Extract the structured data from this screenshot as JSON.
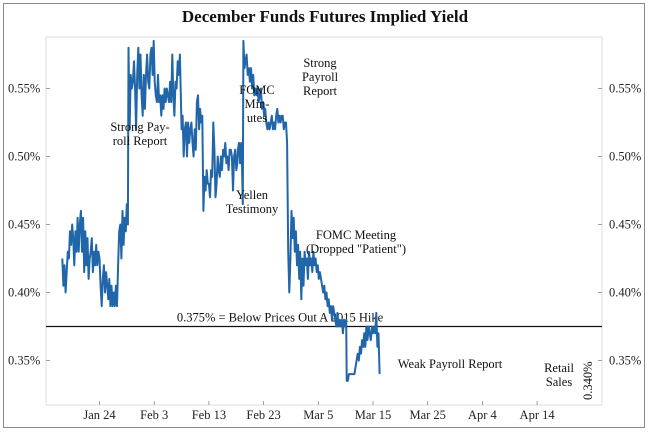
{
  "chart_data": {
    "type": "line",
    "title": "December Funds Futures Implied Yield",
    "xlabel": "",
    "ylabel": "",
    "ylim": [
      0.325,
      0.595
    ],
    "x_ticks": [
      "Jan 24",
      "Feb 3",
      "Feb 13",
      "Feb 23",
      "Mar 5",
      "Mar 15",
      "Mar 25",
      "Apr 4",
      "Apr 14"
    ],
    "y_ticks": [
      {
        "value": 0.35,
        "label": "0.35%"
      },
      {
        "value": 0.4,
        "label": "0.40%"
      },
      {
        "value": 0.45,
        "label": "0.45%"
      },
      {
        "value": 0.5,
        "label": "0.50%"
      },
      {
        "value": 0.55,
        "label": "0.55%"
      }
    ],
    "reference_line": {
      "value": 0.375,
      "label": "0.375% = Below Prices Out A 2015 Hike"
    },
    "end_label": "0.340%",
    "annotations": [
      {
        "id": "strong-payroll-1",
        "lines": [
          "Strong Pay-",
          "roll Report"
        ]
      },
      {
        "id": "fomc-minutes",
        "lines": [
          "FOMC",
          "Min-",
          "utes"
        ]
      },
      {
        "id": "strong-payroll-2",
        "lines": [
          "Strong",
          "Payroll",
          "Report"
        ]
      },
      {
        "id": "yellen",
        "lines": [
          "Yellen",
          "Testimony"
        ]
      },
      {
        "id": "fomc-meeting",
        "lines": [
          "FOMC Meeting",
          "(Dropped \"Patient\")"
        ]
      },
      {
        "id": "weak-payroll",
        "lines": [
          "Weak Payroll Report"
        ]
      },
      {
        "id": "retail-sales",
        "lines": [
          "Retail",
          "Sales"
        ]
      }
    ],
    "series": [
      {
        "name": "December Funds Futures Implied Yield",
        "color": "#2166a8",
        "points": [
          [
            -6.8,
            0.425
          ],
          [
            -6.6,
            0.405
          ],
          [
            -6.4,
            0.42
          ],
          [
            -6.2,
            0.4
          ],
          [
            -6.0,
            0.415
          ],
          [
            -5.8,
            0.43
          ],
          [
            -5.6,
            0.425
          ],
          [
            -5.4,
            0.445
          ],
          [
            -5.2,
            0.435
          ],
          [
            -5.0,
            0.45
          ],
          [
            -4.8,
            0.44
          ],
          [
            -4.6,
            0.42
          ],
          [
            -4.4,
            0.445
          ],
          [
            -4.2,
            0.43
          ],
          [
            -4.0,
            0.455
          ],
          [
            -3.8,
            0.43
          ],
          [
            -3.6,
            0.45
          ],
          [
            -3.4,
            0.46
          ],
          [
            -3.2,
            0.43
          ],
          [
            -3.0,
            0.455
          ],
          [
            -2.8,
            0.415
          ],
          [
            -2.6,
            0.445
          ],
          [
            -2.4,
            0.42
          ],
          [
            -2.2,
            0.44
          ],
          [
            -2.0,
            0.41
          ],
          [
            -1.8,
            0.425
          ],
          [
            -1.6,
            0.43
          ],
          [
            -1.4,
            0.44
          ],
          [
            -1.2,
            0.415
          ],
          [
            -1.0,
            0.43
          ],
          [
            -0.8,
            0.42
          ],
          [
            -0.6,
            0.435
          ],
          [
            -0.4,
            0.42
          ],
          [
            -0.2,
            0.43
          ],
          [
            0.0,
            0.425
          ],
          [
            0.2,
            0.405
          ],
          [
            0.4,
            0.39
          ],
          [
            0.6,
            0.41
          ],
          [
            0.8,
            0.42
          ],
          [
            1.0,
            0.4
          ],
          [
            1.2,
            0.415
          ],
          [
            1.4,
            0.405
          ],
          [
            1.6,
            0.395
          ],
          [
            1.8,
            0.41
          ],
          [
            2.0,
            0.39
          ],
          [
            2.2,
            0.405
          ],
          [
            2.4,
            0.39
          ],
          [
            2.6,
            0.4
          ],
          [
            2.8,
            0.39
          ],
          [
            3.0,
            0.405
          ],
          [
            3.2,
            0.39
          ],
          [
            3.4,
            0.42
          ],
          [
            3.6,
            0.445
          ],
          [
            3.8,
            0.45
          ],
          [
            4.0,
            0.425
          ],
          [
            4.2,
            0.46
          ],
          [
            4.4,
            0.435
          ],
          [
            4.6,
            0.455
          ],
          [
            4.8,
            0.445
          ],
          [
            5.0,
            0.465
          ],
          [
            5.2,
            0.45
          ],
          [
            5.3,
            0.58
          ],
          [
            5.5,
            0.52
          ],
          [
            5.7,
            0.56
          ],
          [
            5.9,
            0.55
          ],
          [
            6.1,
            0.555
          ],
          [
            6.3,
            0.57
          ],
          [
            6.5,
            0.55
          ],
          [
            6.7,
            0.52
          ],
          [
            6.9,
            0.56
          ],
          [
            7.1,
            0.58
          ],
          [
            7.3,
            0.55
          ],
          [
            7.5,
            0.575
          ],
          [
            7.7,
            0.545
          ],
          [
            7.9,
            0.53
          ],
          [
            8.1,
            0.56
          ],
          [
            8.3,
            0.535
          ],
          [
            8.5,
            0.56
          ],
          [
            8.7,
            0.575
          ],
          [
            8.9,
            0.555
          ],
          [
            9.1,
            0.55
          ],
          [
            9.3,
            0.575
          ],
          [
            9.5,
            0.58
          ],
          [
            9.7,
            0.56
          ],
          [
            9.9,
            0.585
          ],
          [
            10.1,
            0.555
          ],
          [
            10.3,
            0.545
          ],
          [
            10.5,
            0.54
          ],
          [
            10.7,
            0.56
          ],
          [
            10.9,
            0.54
          ],
          [
            11.1,
            0.545
          ],
          [
            11.3,
            0.53
          ],
          [
            11.5,
            0.545
          ],
          [
            11.7,
            0.535
          ],
          [
            11.9,
            0.55
          ],
          [
            12.1,
            0.54
          ],
          [
            12.3,
            0.55
          ],
          [
            12.5,
            0.545
          ],
          [
            12.7,
            0.54
          ],
          [
            12.9,
            0.555
          ],
          [
            13.1,
            0.54
          ],
          [
            13.3,
            0.575
          ],
          [
            13.5,
            0.545
          ],
          [
            13.7,
            0.53
          ],
          [
            13.9,
            0.555
          ],
          [
            14.1,
            0.55
          ],
          [
            14.3,
            0.57
          ],
          [
            14.5,
            0.56
          ],
          [
            14.7,
            0.575
          ],
          [
            14.8,
            0.555
          ],
          [
            15.0,
            0.52
          ],
          [
            15.2,
            0.53
          ],
          [
            15.4,
            0.5
          ],
          [
            15.6,
            0.52
          ],
          [
            15.8,
            0.525
          ],
          [
            16.0,
            0.5
          ],
          [
            16.2,
            0.525
          ],
          [
            16.4,
            0.51
          ],
          [
            16.6,
            0.52
          ],
          [
            16.8,
            0.525
          ],
          [
            17.0,
            0.51
          ],
          [
            17.2,
            0.5
          ],
          [
            17.4,
            0.52
          ],
          [
            17.6,
            0.505
          ],
          [
            17.8,
            0.54
          ],
          [
            18.0,
            0.545
          ],
          [
            18.2,
            0.52
          ],
          [
            18.4,
            0.535
          ],
          [
            18.6,
            0.525
          ],
          [
            18.8,
            0.53
          ],
          [
            19.0,
            0.46
          ],
          [
            19.2,
            0.485
          ],
          [
            19.4,
            0.475
          ],
          [
            19.6,
            0.49
          ],
          [
            19.8,
            0.48
          ],
          [
            20.0,
            0.48
          ],
          [
            20.2,
            0.47
          ],
          [
            20.4,
            0.49
          ],
          [
            20.6,
            0.485
          ],
          [
            20.8,
            0.525
          ],
          [
            21.0,
            0.505
          ],
          [
            21.2,
            0.47
          ],
          [
            21.4,
            0.48
          ],
          [
            21.6,
            0.5
          ],
          [
            21.8,
            0.49
          ],
          [
            22.0,
            0.485
          ],
          [
            22.2,
            0.5
          ],
          [
            22.4,
            0.49
          ],
          [
            22.6,
            0.505
          ],
          [
            22.8,
            0.5
          ],
          [
            23.0,
            0.51
          ],
          [
            23.2,
            0.495
          ],
          [
            23.4,
            0.5
          ],
          [
            23.6,
            0.49
          ],
          [
            23.8,
            0.505
          ],
          [
            24.0,
            0.505
          ],
          [
            24.2,
            0.5
          ],
          [
            24.4,
            0.475
          ],
          [
            24.6,
            0.5
          ],
          [
            24.8,
            0.505
          ],
          [
            25.0,
            0.49
          ],
          [
            25.2,
            0.495
          ],
          [
            25.3,
            0.505
          ],
          [
            25.5,
            0.51
          ],
          [
            25.7,
            0.495
          ],
          [
            25.9,
            0.51
          ],
          [
            26.0,
            0.505
          ],
          [
            26.2,
            0.465
          ],
          [
            26.3,
            0.585
          ],
          [
            26.5,
            0.565
          ],
          [
            26.7,
            0.57
          ],
          [
            26.9,
            0.575
          ],
          [
            27.1,
            0.56
          ],
          [
            27.3,
            0.565
          ],
          [
            27.5,
            0.555
          ],
          [
            27.7,
            0.565
          ],
          [
            27.9,
            0.55
          ],
          [
            28.1,
            0.56
          ],
          [
            28.3,
            0.545
          ],
          [
            28.5,
            0.55
          ],
          [
            28.7,
            0.545
          ],
          [
            28.9,
            0.55
          ],
          [
            29.1,
            0.54
          ],
          [
            29.3,
            0.545
          ],
          [
            29.5,
            0.55
          ],
          [
            29.7,
            0.535
          ],
          [
            29.9,
            0.54
          ],
          [
            30.1,
            0.53
          ],
          [
            30.3,
            0.535
          ],
          [
            30.5,
            0.525
          ],
          [
            30.7,
            0.52
          ],
          [
            30.9,
            0.525
          ],
          [
            31.1,
            0.52
          ],
          [
            31.3,
            0.525
          ],
          [
            31.5,
            0.53
          ],
          [
            31.7,
            0.52
          ],
          [
            31.9,
            0.525
          ],
          [
            32.1,
            0.52
          ],
          [
            32.3,
            0.53
          ],
          [
            32.5,
            0.535
          ],
          [
            32.7,
            0.525
          ],
          [
            32.9,
            0.53
          ],
          [
            33.1,
            0.525
          ],
          [
            33.3,
            0.53
          ],
          [
            33.5,
            0.53
          ],
          [
            33.7,
            0.52
          ],
          [
            33.9,
            0.525
          ],
          [
            34.1,
            0.525
          ],
          [
            34.3,
            0.51
          ],
          [
            34.5,
            0.43
          ],
          [
            34.7,
            0.4
          ],
          [
            34.9,
            0.425
          ],
          [
            35.1,
            0.46
          ],
          [
            35.3,
            0.44
          ],
          [
            35.5,
            0.455
          ],
          [
            35.7,
            0.43
          ],
          [
            35.9,
            0.445
          ],
          [
            36.1,
            0.42
          ],
          [
            36.3,
            0.435
          ],
          [
            36.5,
            0.41
          ],
          [
            36.7,
            0.43
          ],
          [
            36.9,
            0.395
          ],
          [
            37.1,
            0.425
          ],
          [
            37.3,
            0.405
          ],
          [
            37.5,
            0.43
          ],
          [
            37.7,
            0.42
          ],
          [
            37.9,
            0.425
          ],
          [
            38.1,
            0.41
          ],
          [
            38.3,
            0.43
          ],
          [
            38.5,
            0.42
          ],
          [
            38.7,
            0.425
          ],
          [
            38.9,
            0.415
          ],
          [
            39.1,
            0.43
          ],
          [
            39.3,
            0.42
          ],
          [
            39.5,
            0.425
          ],
          [
            39.7,
            0.415
          ],
          [
            39.9,
            0.42
          ],
          [
            40.1,
            0.41
          ],
          [
            40.3,
            0.415
          ],
          [
            40.5,
            0.41
          ],
          [
            40.7,
            0.405
          ],
          [
            40.9,
            0.4
          ],
          [
            41.1,
            0.405
          ],
          [
            41.3,
            0.395
          ],
          [
            41.5,
            0.4
          ],
          [
            41.7,
            0.39
          ],
          [
            41.9,
            0.395
          ],
          [
            42.1,
            0.385
          ],
          [
            42.3,
            0.39
          ],
          [
            42.5,
            0.38
          ],
          [
            42.7,
            0.39
          ],
          [
            42.9,
            0.385
          ],
          [
            43.1,
            0.38
          ],
          [
            43.3,
            0.375
          ],
          [
            43.5,
            0.385
          ],
          [
            43.7,
            0.375
          ],
          [
            43.9,
            0.38
          ],
          [
            44.1,
            0.375
          ],
          [
            44.3,
            0.38
          ],
          [
            44.5,
            0.37
          ],
          [
            44.7,
            0.38
          ],
          [
            44.9,
            0.375
          ],
          [
            45.1,
            0.38
          ],
          [
            45.2,
            0.335
          ],
          [
            45.4,
            0.335
          ],
          [
            45.6,
            0.34
          ],
          [
            45.8,
            0.34
          ],
          [
            46.0,
            0.34
          ],
          [
            46.2,
            0.34
          ],
          [
            46.4,
            0.34
          ],
          [
            46.6,
            0.34
          ],
          [
            46.8,
            0.345
          ],
          [
            47.0,
            0.35
          ],
          [
            47.2,
            0.355
          ],
          [
            47.4,
            0.35
          ],
          [
            47.6,
            0.36
          ],
          [
            47.8,
            0.355
          ],
          [
            48.0,
            0.365
          ],
          [
            48.2,
            0.36
          ],
          [
            48.4,
            0.37
          ],
          [
            48.6,
            0.36
          ],
          [
            48.8,
            0.375
          ],
          [
            49.0,
            0.365
          ],
          [
            49.2,
            0.375
          ],
          [
            49.4,
            0.37
          ],
          [
            49.6,
            0.365
          ],
          [
            49.8,
            0.375
          ],
          [
            50.0,
            0.37
          ],
          [
            50.2,
            0.375
          ],
          [
            50.4,
            0.37
          ],
          [
            50.6,
            0.385
          ],
          [
            50.8,
            0.36
          ],
          [
            51.0,
            0.37
          ],
          [
            51.2,
            0.34
          ]
        ]
      }
    ]
  }
}
